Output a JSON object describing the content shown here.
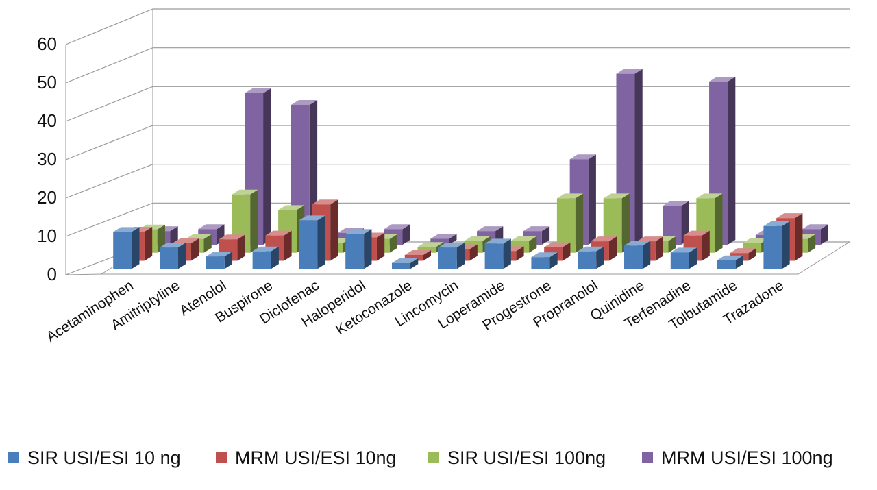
{
  "chart_data": {
    "type": "bar",
    "title": "",
    "xlabel": "",
    "ylabel": "",
    "ylim": [
      0,
      60
    ],
    "yticks": [
      0,
      10,
      20,
      30,
      40,
      50,
      60
    ],
    "grid": true,
    "legend_position": "bottom",
    "categories": [
      "Acetaminophen",
      "Amitriptyline",
      "Atenolol",
      "Buspirone",
      "Diclofenac",
      "Haloperidol",
      "Ketoconazole",
      "Lincomycin",
      "Loperamide",
      "Progestrone",
      "Propranolol",
      "Quinidine",
      "Terfenadine",
      "Tolbutamide",
      "Trazadone"
    ],
    "series": [
      {
        "name": "SIR USI/ESI 10 ng",
        "color": "#4a7ebb",
        "values": [
          9.5,
          5.5,
          3.2,
          4.5,
          12.5,
          9,
          1.5,
          5.5,
          6.5,
          3,
          4.5,
          6,
          4.2,
          2.2,
          11
        ]
      },
      {
        "name": "MRM USI/ESI 10ng",
        "color": "#c0504d",
        "values": [
          7.5,
          4.5,
          5.5,
          6.5,
          14.5,
          6,
          1.5,
          3,
          2.5,
          3.5,
          5,
          5,
          6.5,
          2,
          11
        ]
      },
      {
        "name": "SIR USI/ESI 100ng",
        "color": "#9bbb59",
        "values": [
          6,
          3.5,
          15,
          11,
          2.5,
          3.5,
          1.5,
          3,
          3,
          14,
          14,
          3,
          14,
          2.5,
          3.5
        ]
      },
      {
        "name": "MRM USI/ESI 100ng",
        "color": "#8064a2",
        "values": [
          3.5,
          4,
          39,
          36,
          3,
          4,
          1.5,
          3.5,
          3.5,
          22,
          44,
          10,
          42,
          2.5,
          4
        ]
      }
    ]
  }
}
